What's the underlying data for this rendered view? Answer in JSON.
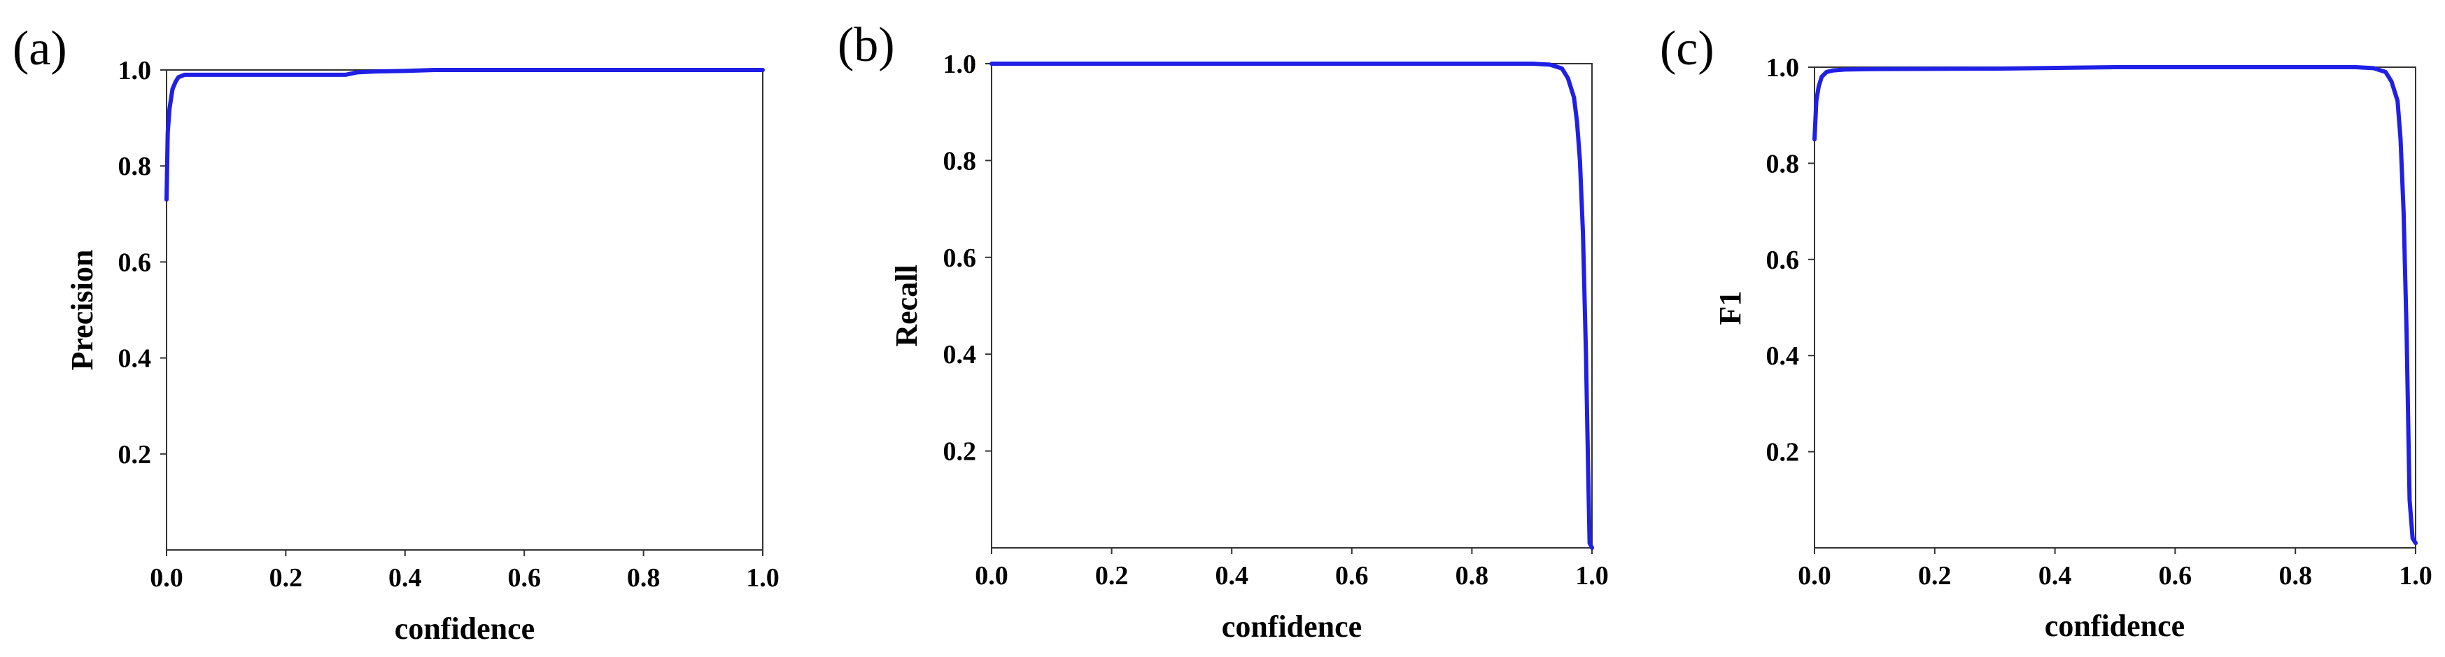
{
  "series_color": "#1f1fe6",
  "chart_data": [
    {
      "type": "line",
      "panel_label": "(a)",
      "xlabel": "confidence",
      "ylabel": "Precision",
      "xlim": [
        0,
        1
      ],
      "ylim": [
        0,
        1
      ],
      "grid": false,
      "x_ticks": [
        "0.0",
        "0.2",
        "0.4",
        "0.6",
        "0.8",
        "1.0"
      ],
      "y_ticks": [
        "0.2",
        "0.4",
        "0.6",
        "0.8",
        "1.0"
      ],
      "series": [
        {
          "x": [
            0.0,
            0.002,
            0.005,
            0.01,
            0.015,
            0.02,
            0.03,
            0.05,
            0.1,
            0.2,
            0.3,
            0.32,
            0.35,
            0.4,
            0.45,
            0.5,
            0.6,
            0.8,
            1.0
          ],
          "y": [
            0.73,
            0.87,
            0.92,
            0.96,
            0.975,
            0.985,
            0.99,
            0.99,
            0.99,
            0.99,
            0.99,
            0.995,
            0.997,
            0.998,
            1.0,
            1.0,
            1.0,
            1.0,
            1.0
          ]
        }
      ]
    },
    {
      "type": "line",
      "panel_label": "(b)",
      "xlabel": "confidence",
      "ylabel": "Recall",
      "xlim": [
        0,
        1
      ],
      "ylim": [
        0,
        1
      ],
      "grid": false,
      "x_ticks": [
        "0.0",
        "0.2",
        "0.4",
        "0.6",
        "0.8",
        "1.0"
      ],
      "y_ticks": [
        "0.2",
        "0.4",
        "0.6",
        "0.8",
        "1.0"
      ],
      "series": [
        {
          "x": [
            0.0,
            0.2,
            0.4,
            0.6,
            0.8,
            0.9,
            0.93,
            0.95,
            0.96,
            0.97,
            0.975,
            0.98,
            0.985,
            0.99,
            0.993,
            0.996,
            1.0
          ],
          "y": [
            1.0,
            1.0,
            1.0,
            1.0,
            1.0,
            1.0,
            0.998,
            0.99,
            0.97,
            0.93,
            0.88,
            0.8,
            0.65,
            0.4,
            0.2,
            0.01,
            0.0
          ]
        }
      ]
    },
    {
      "type": "line",
      "panel_label": "(c)",
      "xlabel": "confidence",
      "ylabel": "F1",
      "xlim": [
        0,
        1
      ],
      "ylim": [
        0,
        1
      ],
      "grid": false,
      "x_ticks": [
        "0.0",
        "0.2",
        "0.4",
        "0.6",
        "0.8",
        "1.0"
      ],
      "y_ticks": [
        "0.2",
        "0.4",
        "0.6",
        "0.8",
        "1.0"
      ],
      "series": [
        {
          "x": [
            0.0,
            0.003,
            0.007,
            0.012,
            0.02,
            0.03,
            0.05,
            0.1,
            0.3,
            0.5,
            0.8,
            0.9,
            0.93,
            0.95,
            0.96,
            0.97,
            0.975,
            0.98,
            0.985,
            0.99,
            0.995,
            1.0
          ],
          "y": [
            0.85,
            0.93,
            0.96,
            0.98,
            0.99,
            0.993,
            0.995,
            0.996,
            0.997,
            1.0,
            1.0,
            1.0,
            0.998,
            0.99,
            0.97,
            0.93,
            0.85,
            0.7,
            0.45,
            0.1,
            0.02,
            0.01
          ]
        }
      ]
    }
  ]
}
